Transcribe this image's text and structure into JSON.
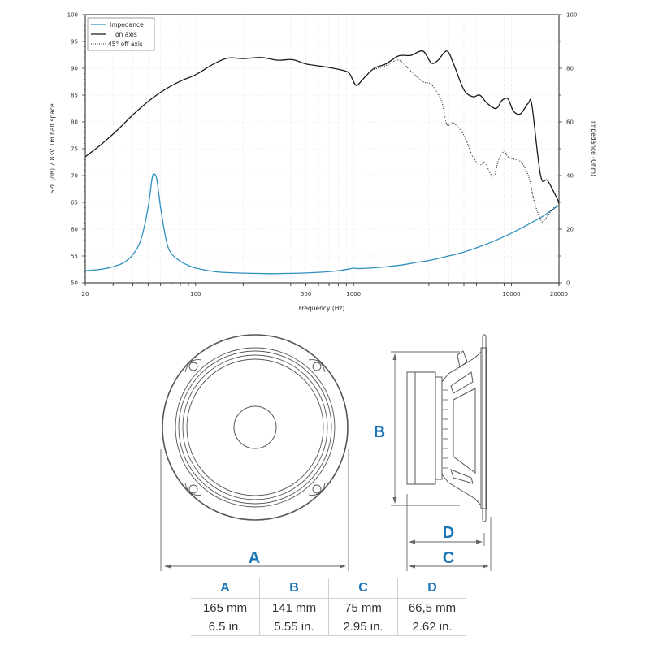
{
  "chart_data": {
    "type": "line",
    "title": "",
    "xlabel": "Frequency (Hz)",
    "ylabel": "SPL (dB)  2.83V  1m  half space",
    "y2label": "Impedance (Ohm)",
    "xscale": "log",
    "xlim": [
      20,
      20000
    ],
    "ylim": [
      50,
      100
    ],
    "y2lim": [
      0,
      100
    ],
    "grid": true,
    "legend_position": "top-left",
    "x_ticks": [
      20,
      100,
      500,
      1000,
      10000,
      20000
    ],
    "x_tick_labels": [
      "20",
      "100",
      "500",
      "1000",
      "10000",
      "20000"
    ],
    "y_ticks": [
      50,
      55,
      60,
      65,
      70,
      75,
      80,
      85,
      90,
      95,
      100
    ],
    "y_tick_labels": [
      "50",
      "55",
      "60",
      "65",
      "70",
      "75",
      "80",
      "85",
      "90",
      "95",
      "100"
    ],
    "y2_ticks": [
      0,
      20,
      40,
      60,
      80,
      100
    ],
    "y2_tick_labels": [
      "0",
      "20",
      "40",
      "60",
      "80",
      "100"
    ],
    "series": [
      {
        "name": "Impedance",
        "axis": "right",
        "color": "#2f8fbf",
        "style": "solid",
        "x": [
          20,
          25,
          30,
          35,
          40,
          45,
          50,
          53,
          55,
          57,
          60,
          65,
          70,
          80,
          90,
          100,
          130,
          160,
          200,
          300,
          400,
          600,
          800,
          950,
          1000,
          1100,
          1500,
          2000,
          2500,
          3000,
          4000,
          5000,
          7000,
          10000,
          13000,
          16000,
          20000
        ],
        "values": [
          4.5,
          5.0,
          6.0,
          7.5,
          10.5,
          16,
          28,
          39,
          40.5,
          38,
          28,
          16,
          11,
          8,
          6.5,
          5.5,
          4.2,
          3.8,
          3.6,
          3.4,
          3.5,
          3.9,
          4.5,
          5.2,
          5.5,
          5.3,
          5.8,
          6.6,
          7.6,
          8.3,
          10,
          11.5,
          14.5,
          18.5,
          22,
          25,
          29
        ]
      },
      {
        "name": "on axis",
        "axis": "left",
        "color": "#1a1a1a",
        "style": "solid",
        "x": [
          20,
          25,
          32,
          40,
          50,
          62,
          80,
          100,
          130,
          160,
          200,
          260,
          330,
          410,
          500,
          650,
          800,
          930,
          1000,
          1050,
          1150,
          1350,
          1600,
          1930,
          2300,
          2750,
          3100,
          3400,
          3900,
          4300,
          5000,
          5700,
          6300,
          7000,
          8000,
          8700,
          9500,
          10300,
          11400,
          12800,
          13500,
          15300,
          17000,
          20000
        ],
        "values": [
          73.5,
          75.7,
          78.5,
          81.3,
          83.8,
          85.8,
          87.6,
          88.8,
          90.8,
          91.9,
          91.8,
          92.0,
          91.5,
          91.6,
          90.8,
          90.3,
          89.8,
          89.2,
          87.5,
          86.8,
          88.0,
          90.0,
          90.8,
          92.3,
          92.4,
          93.2,
          91.0,
          91.4,
          93.2,
          90.8,
          86.0,
          84.7,
          85.0,
          83.5,
          82.5,
          84.0,
          84.3,
          82.0,
          81.5,
          83.5,
          83.0,
          70.0,
          69.0,
          65.0
        ]
      },
      {
        "name": "45° off axis",
        "axis": "left",
        "color": "#1a1a1a",
        "style": "dotted",
        "x": [
          1350,
          1600,
          1930,
          2300,
          2750,
          3100,
          3600,
          3900,
          4300,
          5000,
          5700,
          6300,
          6800,
          7300,
          7800,
          8300,
          9000,
          9500,
          10500,
          11500,
          12800,
          14000,
          15500,
          16500,
          18000,
          20000
        ],
        "values": [
          89.8,
          90.5,
          91.5,
          89.5,
          87.5,
          87.0,
          84.0,
          79.5,
          79.8,
          77.5,
          73.5,
          72.0,
          72.5,
          70.5,
          70.0,
          73.0,
          74.5,
          73.5,
          73.0,
          72.5,
          70.0,
          65.0,
          61.5,
          62.0,
          63.5,
          65.0
        ]
      }
    ]
  },
  "legend": {
    "impedance_label": "Impedance",
    "on_axis_label": "on axis",
    "off_axis_label": "45° off axis"
  },
  "drawing": {
    "label_a": "A",
    "label_b": "B",
    "label_c": "C",
    "label_d": "D",
    "accent_color": "#1a74b8"
  },
  "dimensions_table": {
    "headers": [
      "A",
      "B",
      "C",
      "D"
    ],
    "rows": [
      [
        "165 mm",
        "141 mm",
        "75 mm",
        "66,5 mm"
      ],
      [
        "6.5 in.",
        "5.55 in.",
        "2.95 in.",
        "2.62 in."
      ]
    ]
  }
}
